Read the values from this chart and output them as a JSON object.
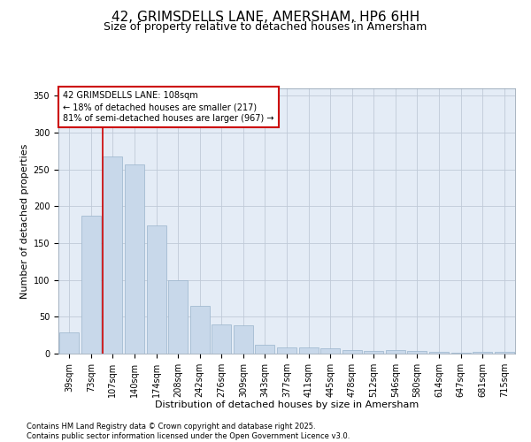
{
  "title": "42, GRIMSDELLS LANE, AMERSHAM, HP6 6HH",
  "subtitle": "Size of property relative to detached houses in Amersham",
  "xlabel": "Distribution of detached houses by size in Amersham",
  "ylabel": "Number of detached properties",
  "categories": [
    "39sqm",
    "73sqm",
    "107sqm",
    "140sqm",
    "174sqm",
    "208sqm",
    "242sqm",
    "276sqm",
    "309sqm",
    "343sqm",
    "377sqm",
    "411sqm",
    "445sqm",
    "478sqm",
    "512sqm",
    "546sqm",
    "580sqm",
    "614sqm",
    "647sqm",
    "681sqm",
    "715sqm"
  ],
  "values": [
    29,
    187,
    268,
    257,
    174,
    100,
    65,
    40,
    38,
    12,
    8,
    8,
    7,
    5,
    4,
    5,
    4,
    2,
    1,
    2,
    2
  ],
  "bar_color": "#c8d8ea",
  "bar_edge_color": "#9ab4cc",
  "grid_color": "#c0cad8",
  "bg_color": "#e4ecf6",
  "property_line_color": "#cc0000",
  "property_line_index": 2,
  "annotation_text": "42 GRIMSDELLS LANE: 108sqm\n← 18% of detached houses are smaller (217)\n81% of semi-detached houses are larger (967) →",
  "annotation_box_facecolor": "white",
  "annotation_box_edgecolor": "#cc0000",
  "ylim": [
    0,
    360
  ],
  "yticks": [
    0,
    50,
    100,
    150,
    200,
    250,
    300,
    350
  ],
  "footer": "Contains HM Land Registry data © Crown copyright and database right 2025.\nContains public sector information licensed under the Open Government Licence v3.0.",
  "title_fontsize": 11,
  "subtitle_fontsize": 9,
  "xlabel_fontsize": 8,
  "ylabel_fontsize": 8,
  "tick_fontsize": 7,
  "annotation_fontsize": 7,
  "footer_fontsize": 6
}
